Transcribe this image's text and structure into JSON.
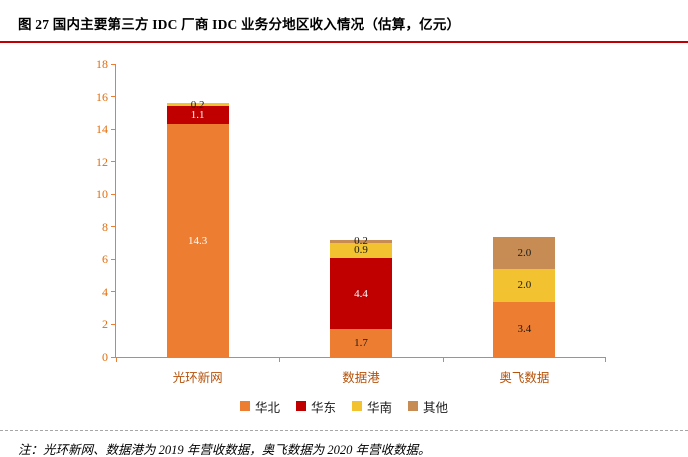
{
  "note": "注：光环新网、数据港为 2019 年营收数据，奥飞数据为 2020 年营收数据。",
  "colors": {
    "title_rule": "#C00000",
    "axis": "#ED7D31",
    "y_tick_label": "#E46C0A",
    "category_label": "#B5520B",
    "note_separator": "#A6A6A6"
  },
  "chart_data": {
    "type": "bar",
    "stacked": true,
    "title": "图 27 国内主要第三方 IDC 厂商 IDC 业务分地区收入情况（估算，亿元）",
    "xlabel": "",
    "ylabel": "",
    "categories": [
      "光环新网",
      "数据港",
      "奥飞数据"
    ],
    "series": [
      {
        "name": "华北",
        "color": "#ED7D31",
        "values": [
          14.3,
          1.7,
          3.4
        ],
        "label_colors": [
          "#FFFFFF",
          "#1A1A1A",
          "#1A1A1A"
        ]
      },
      {
        "name": "华东",
        "color": "#C00000",
        "values": [
          1.1,
          4.4,
          0
        ],
        "label_colors": [
          "#FFFFFF",
          "#FFFFFF",
          null
        ]
      },
      {
        "name": "华南",
        "color": "#F2C230",
        "values": [
          0.2,
          0.9,
          2.0
        ],
        "label_colors": [
          "#1A1A1A",
          "#1A1A1A",
          "#1A1A1A"
        ]
      },
      {
        "name": "其他",
        "color": "#C68C53",
        "values": [
          0,
          0.2,
          2.0
        ],
        "label_colors": [
          null,
          "#1A1A1A",
          "#1A1A1A"
        ]
      }
    ],
    "ylim": [
      0,
      18
    ],
    "ytick_step": 2,
    "yticks": [
      0,
      2,
      4,
      6,
      8,
      10,
      12,
      14,
      16,
      18
    ],
    "grid": false,
    "legend_position": "bottom",
    "bar_totals": [
      15.6,
      7.2,
      7.4
    ]
  }
}
